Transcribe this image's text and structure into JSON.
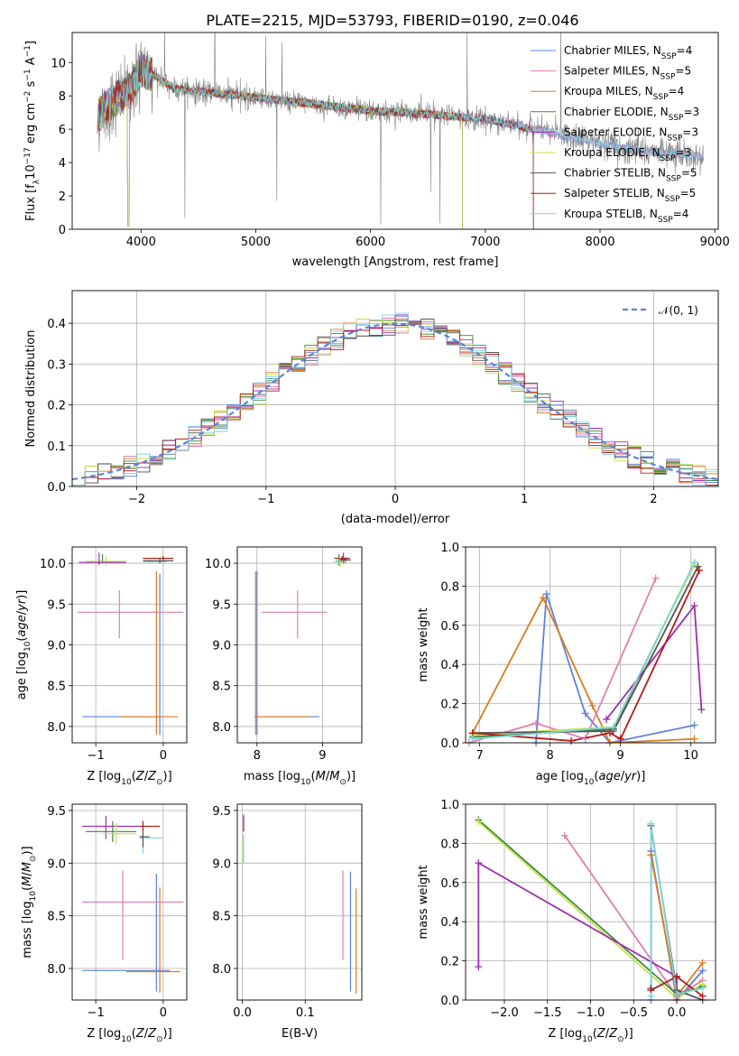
{
  "figure_title": "PLATE=2215, MJD=53793, FIBERID=0190, z=0.046",
  "colors": {
    "Chabrier MILES": "#5b84d6",
    "Salpeter MILES": "#e07fb0",
    "Kroupa MILES": "#d97b25",
    "Chabrier ELODIE": "#3c8a3c",
    "Salpeter ELODIE": "#9b2fae",
    "Kroupa ELODIE": "#c9e04a",
    "Chabrier STELIB": "#555555",
    "Salpeter STELIB": "#b31b1b",
    "Kroupa STELIB": "#7fd6dc",
    "data": "#808080"
  },
  "chart_data": [
    {
      "id": "spectrum",
      "type": "line",
      "title": "PLATE=2215, MJD=53793, FIBERID=0190, z=0.046",
      "xlabel": "wavelength [Angstrom, rest frame]",
      "ylabel_parts": [
        "Flux [f",
        "λ",
        "10",
        "−17",
        " erg cm",
        "−2",
        " s",
        "−1",
        " A",
        "−1",
        "]"
      ],
      "xlim": [
        3400,
        9030
      ],
      "ylim": [
        0,
        11.8
      ],
      "xticks": [
        4000,
        5000,
        6000,
        7000,
        8000,
        9000
      ],
      "yticks": [
        0,
        2,
        4,
        6,
        8,
        10
      ],
      "legend_position": "top-right",
      "legend": [
        {
          "base": "Chabrier MILES, N",
          "sub": "SSP",
          "tail": "=4"
        },
        {
          "base": "Salpeter MILES, N",
          "sub": "SSP",
          "tail": "=5"
        },
        {
          "base": "Kroupa MILES, N",
          "sub": "SSP",
          "tail": "=4"
        },
        {
          "base": "Chabrier ELODIE, N",
          "sub": "SSP",
          "tail": "=3"
        },
        {
          "base": "Salpeter ELODIE, N",
          "sub": "SSP",
          "tail": "=3"
        },
        {
          "base": "Kroupa ELODIE, N",
          "sub": "SSP",
          "tail": "=3"
        },
        {
          "base": "Chabrier STELIB, N",
          "sub": "SSP",
          "tail": "=5"
        },
        {
          "base": "Salpeter STELIB, N",
          "sub": "SSP",
          "tail": "=5"
        },
        {
          "base": "Kroupa STELIB, N",
          "sub": "SSP",
          "tail": "=4"
        }
      ],
      "continuum": {
        "x": [
          3620,
          3700,
          3800,
          3900,
          4000,
          4100,
          4300,
          4600,
          5000,
          5500,
          6000,
          6500,
          7000,
          7500,
          8000,
          8500,
          8900
        ],
        "y": [
          6.8,
          7.3,
          7.9,
          8.3,
          9.6,
          9.3,
          8.4,
          8.2,
          7.9,
          7.5,
          7.1,
          6.9,
          6.6,
          5.9,
          5.1,
          4.6,
          4.4
        ]
      }
    },
    {
      "id": "residuals",
      "type": "line",
      "xlabel": "(data-model)/error",
      "ylabel": "Normed distribution",
      "xlim": [
        -2.5,
        2.5
      ],
      "ylim": [
        0,
        0.48
      ],
      "xticks": [
        -2,
        -1,
        0,
        1,
        2
      ],
      "yticks": [
        0.0,
        0.1,
        0.2,
        0.3,
        0.4
      ],
      "grid": true,
      "legend_position": "top-right",
      "reference": {
        "name": "𝒩(0, 1)",
        "mean": 0,
        "std": 1
      },
      "histogram_bin_width": 0.1
    },
    {
      "id": "age-vs-Z",
      "type": "scatter",
      "xlabel": "Z [log10(Z/Z⊙)]",
      "ylabel": "age  [log10(age/yr)]",
      "xlim": [
        -1.35,
        0.35
      ],
      "ylim": [
        7.8,
        10.2
      ],
      "xticks": [
        -1,
        0
      ],
      "yticks": [
        8.0,
        8.5,
        9.0,
        9.5,
        10.0
      ],
      "grid": true,
      "points": [
        {
          "model": "Chabrier MILES",
          "x": -0.05,
          "xerr": [
            1.15,
            0.05
          ],
          "y": 8.12,
          "yerr": [
            0.22,
            1.75
          ]
        },
        {
          "model": "Kroupa MILES",
          "x": -0.1,
          "xerr": [
            0.55,
            0.32
          ],
          "y": 8.12,
          "yerr": [
            0.22,
            1.78
          ]
        },
        {
          "model": "Salpeter MILES",
          "x": -0.65,
          "xerr": [
            0.62,
            0.95
          ],
          "y": 9.4,
          "yerr": [
            0.32,
            0.27
          ]
        },
        {
          "model": "Salpeter STELIB",
          "x": 0.0,
          "xerr": [
            0.3,
            0.15
          ],
          "y": 10.06,
          "yerr": [
            0.04,
            0.03
          ]
        },
        {
          "model": "Chabrier ELODIE",
          "x": -0.9,
          "xerr": [
            0.25,
            0.35
          ],
          "y": 10.02,
          "yerr": [
            0.02,
            0.09
          ]
        },
        {
          "model": "Kroupa ELODIE",
          "x": -0.85,
          "xerr": [
            0.3,
            0.3
          ],
          "y": 10.02,
          "yerr": [
            0.05,
            0.06
          ]
        },
        {
          "model": "Salpeter ELODIE",
          "x": -0.95,
          "xerr": [
            0.3,
            0.4
          ],
          "y": 10.01,
          "yerr": [
            0.03,
            0.12
          ]
        },
        {
          "model": "Kroupa STELIB",
          "x": -0.2,
          "xerr": [
            0.1,
            0.25
          ],
          "y": 10.02,
          "yerr": [
            0.03,
            0.04
          ]
        },
        {
          "model": "Chabrier STELIB",
          "x": -0.05,
          "xerr": [
            0.25,
            0.2
          ],
          "y": 10.03,
          "yerr": [
            0.03,
            0.04
          ]
        }
      ]
    },
    {
      "id": "age-vs-mass",
      "type": "scatter",
      "xlabel": "mass [log10(M/M⊙)]",
      "ylabel": "",
      "xlim": [
        7.7,
        9.6
      ],
      "ylim": [
        7.8,
        10.2
      ],
      "xticks": [
        8,
        9
      ],
      "yticks": [
        8.0,
        8.5,
        9.0,
        9.5,
        10.0
      ],
      "grid": true,
      "points": [
        {
          "model": "Chabrier MILES",
          "x": 8.0,
          "xerr": [
            0.02,
            0.95
          ],
          "y": 8.12,
          "yerr": [
            0.22,
            1.78
          ]
        },
        {
          "model": "Kroupa MILES",
          "x": 7.98,
          "xerr": [
            0.02,
            0.8
          ],
          "y": 8.12,
          "yerr": [
            0.22,
            1.78
          ]
        },
        {
          "model": "Salpeter MILES",
          "x": 8.62,
          "xerr": [
            0.55,
            0.45
          ],
          "y": 9.4,
          "yerr": [
            0.32,
            0.27
          ]
        },
        {
          "model": "Salpeter STELIB",
          "x": 9.3,
          "xerr": [
            0.12,
            0.12
          ],
          "y": 10.06,
          "yerr": [
            0.03,
            0.03
          ]
        },
        {
          "model": "Chabrier ELODIE",
          "x": 9.25,
          "xerr": [
            0.05,
            0.05
          ],
          "y": 10.02,
          "yerr": [
            0.05,
            0.09
          ]
        },
        {
          "model": "Kroupa ELODIE",
          "x": 9.27,
          "xerr": [
            0.05,
            0.05
          ],
          "y": 10.0,
          "yerr": [
            0.04,
            0.06
          ]
        },
        {
          "model": "Salpeter ELODIE",
          "x": 9.32,
          "xerr": [
            0.05,
            0.05
          ],
          "y": 10.05,
          "yerr": [
            0.05,
            0.08
          ]
        },
        {
          "model": "Kroupa STELIB",
          "x": 9.22,
          "xerr": [
            0.05,
            0.05
          ],
          "y": 10.02,
          "yerr": [
            0.03,
            0.03
          ]
        },
        {
          "model": "Chabrier STELIB",
          "x": 9.35,
          "xerr": [
            0.08,
            0.08
          ],
          "y": 10.04,
          "yerr": [
            0.03,
            0.03
          ]
        }
      ]
    },
    {
      "id": "mass-weight-vs-age",
      "type": "line",
      "xlabel": "age  [log10(age/yr)]",
      "ylabel": "mass weight",
      "xlim": [
        6.8,
        10.35
      ],
      "ylim": [
        0,
        1.0
      ],
      "xticks": [
        7,
        8,
        9,
        10
      ],
      "yticks": [
        0.0,
        0.2,
        0.4,
        0.6,
        0.8,
        1.0
      ],
      "grid": true,
      "series": [
        {
          "model": "Chabrier MILES",
          "x": [
            7.8,
            7.95,
            8.5,
            8.85,
            10.05
          ],
          "y": [
            0.0,
            0.76,
            0.15,
            0.0,
            0.09
          ]
        },
        {
          "model": "Kroupa MILES",
          "x": [
            6.9,
            7.9,
            8.6,
            8.85,
            10.05
          ],
          "y": [
            0.05,
            0.74,
            0.19,
            0.0,
            0.02
          ]
        },
        {
          "model": "Salpeter MILES",
          "x": [
            6.85,
            7.8,
            8.5,
            9.5
          ],
          "y": [
            0.0,
            0.1,
            0.02,
            0.84
          ]
        },
        {
          "model": "Chabrier ELODIE",
          "x": [
            6.9,
            8.9,
            10.05
          ],
          "y": [
            0.03,
            0.07,
            0.92
          ]
        },
        {
          "model": "Kroupa ELODIE",
          "x": [
            6.9,
            8.9,
            10.05
          ],
          "y": [
            0.04,
            0.08,
            0.91
          ]
        },
        {
          "model": "Salpeter ELODIE",
          "x": [
            8.8,
            10.05,
            10.15
          ],
          "y": [
            0.12,
            0.7,
            0.17
          ]
        },
        {
          "model": "Chabrier STELIB",
          "x": [
            6.9,
            8.9,
            10.1
          ],
          "y": [
            0.05,
            0.06,
            0.9
          ]
        },
        {
          "model": "Salpeter STELIB",
          "x": [
            6.9,
            8.3,
            8.85,
            9.0,
            10.12
          ],
          "y": [
            0.05,
            0.01,
            0.05,
            0.02,
            0.88
          ]
        },
        {
          "model": "Kroupa STELIB",
          "x": [
            6.9,
            8.9,
            10.05
          ],
          "y": [
            0.02,
            0.08,
            0.92
          ]
        }
      ]
    },
    {
      "id": "mass-vs-Z",
      "type": "scatter",
      "xlabel": "Z [log10(Z/Z⊙)]",
      "ylabel": "mass [log10(M/M⊙)]",
      "xlim": [
        -1.35,
        0.35
      ],
      "ylim": [
        7.7,
        9.56
      ],
      "xticks": [
        -1,
        0
      ],
      "yticks": [
        8.0,
        8.5,
        9.0,
        9.5
      ],
      "grid": true,
      "points": [
        {
          "model": "Chabrier MILES",
          "x": -0.1,
          "xerr": [
            1.1,
            0.2
          ],
          "y": 7.98,
          "yerr": [
            0.2,
            0.92
          ]
        },
        {
          "model": "Kroupa MILES",
          "x": -0.05,
          "xerr": [
            0.5,
            0.3
          ],
          "y": 7.97,
          "yerr": [
            0.2,
            0.8
          ]
        },
        {
          "model": "Salpeter MILES",
          "x": -0.6,
          "xerr": [
            0.6,
            0.9
          ],
          "y": 8.63,
          "yerr": [
            0.55,
            0.3
          ]
        },
        {
          "model": "Salpeter STELIB",
          "x": -0.3,
          "xerr": [
            0.05,
            0.25
          ],
          "y": 9.35,
          "yerr": [
            0.05,
            0.05
          ]
        },
        {
          "model": "Salpeter ELODIE",
          "x": -0.85,
          "xerr": [
            0.35,
            0.5
          ],
          "y": 9.35,
          "yerr": [
            0.12,
            0.1
          ]
        },
        {
          "model": "Chabrier ELODIE",
          "x": -0.75,
          "xerr": [
            0.4,
            0.35
          ],
          "y": 9.3,
          "yerr": [
            0.1,
            0.1
          ]
        },
        {
          "model": "Kroupa ELODIE",
          "x": -0.7,
          "xerr": [
            0.2,
            0.3
          ],
          "y": 9.28,
          "yerr": [
            0.1,
            0.1
          ]
        },
        {
          "model": "Kroupa STELIB",
          "x": -0.3,
          "xerr": [
            0.05,
            0.3
          ],
          "y": 9.24,
          "yerr": [
            0.15,
            0.05
          ]
        },
        {
          "model": "Chabrier STELIB",
          "x": -0.3,
          "xerr": [
            0.05,
            0.1
          ],
          "y": 9.25,
          "yerr": [
            0.1,
            0.05
          ]
        }
      ]
    },
    {
      "id": "mass-vs-EBV",
      "type": "scatter",
      "xlabel": "E(B-V)",
      "ylabel": "",
      "xlim": [
        -0.008,
        0.19
      ],
      "ylim": [
        7.7,
        9.56
      ],
      "xticks": [
        0.0,
        0.1
      ],
      "yticks": [
        8.0,
        8.5,
        9.0,
        9.5
      ],
      "grid": true,
      "points": [
        {
          "model": "Salpeter MILES",
          "x": 0.16,
          "y": 8.5,
          "yerr": [
            0.42,
            0.43
          ]
        },
        {
          "model": "Chabrier MILES",
          "x": 0.172,
          "y": 8.35,
          "yerr": [
            0.57,
            0.57
          ]
        },
        {
          "model": "Kroupa MILES",
          "x": 0.181,
          "y": 8.26,
          "yerr": [
            0.5,
            0.5
          ]
        },
        {
          "model": "Salpeter STELIB",
          "x": 0.002,
          "y": 9.35,
          "yerr": [
            0.05,
            0.1
          ]
        },
        {
          "model": "Salpeter ELODIE",
          "x": 0.002,
          "y": 9.38,
          "yerr": [
            0.05,
            0.08
          ]
        },
        {
          "model": "Kroupa STELIB",
          "x": 0.002,
          "y": 9.22,
          "yerr": [
            0.22,
            0.05
          ]
        },
        {
          "model": "Kroupa ELODIE",
          "x": 0.001,
          "y": 9.15,
          "yerr": [
            0.15,
            0.1
          ]
        }
      ]
    },
    {
      "id": "mass-weight-vs-Z",
      "type": "line",
      "xlabel": "Z [log10(Z/Z⊙)]",
      "ylabel": "mass weight",
      "xlim": [
        -2.45,
        0.45
      ],
      "ylim": [
        0,
        1.0
      ],
      "xticks": [
        -2.0,
        -1.5,
        -1.0,
        -0.5,
        0.0
      ],
      "yticks": [
        0.0,
        0.2,
        0.4,
        0.6,
        0.8,
        1.0
      ],
      "grid": true,
      "series": [
        {
          "model": "Chabrier MILES",
          "x": [
            -0.3,
            -0.3,
            0.0,
            0.3
          ],
          "y": [
            0.0,
            0.76,
            0.0,
            0.15
          ]
        },
        {
          "model": "Kroupa MILES",
          "x": [
            -0.3,
            -0.3,
            0.0,
            0.3
          ],
          "y": [
            0.05,
            0.74,
            0.02,
            0.19
          ]
        },
        {
          "model": "Salpeter MILES",
          "x": [
            -1.3,
            0.0,
            0.3
          ],
          "y": [
            0.84,
            0.02,
            0.1
          ]
        },
        {
          "model": "Chabrier ELODIE",
          "x": [
            -2.3,
            0.0,
            0.3
          ],
          "y": [
            0.92,
            0.03,
            0.07
          ]
        },
        {
          "model": "Kroupa ELODIE",
          "x": [
            -2.3,
            0.0,
            0.3
          ],
          "y": [
            0.91,
            0.01,
            0.08
          ]
        },
        {
          "model": "Salpeter ELODIE",
          "x": [
            -2.3,
            -2.3,
            0.0,
            0.0
          ],
          "y": [
            0.17,
            0.7,
            0.12,
            0.0
          ]
        },
        {
          "model": "Chabrier STELIB",
          "x": [
            -0.3,
            -0.3,
            0.0,
            0.3
          ],
          "y": [
            0.06,
            0.89,
            0.05,
            0.0
          ]
        },
        {
          "model": "Salpeter STELIB",
          "x": [
            -0.3,
            0.0,
            0.3
          ],
          "y": [
            0.05,
            0.12,
            0.02
          ]
        },
        {
          "model": "Kroupa STELIB",
          "x": [
            -0.3,
            -0.3,
            0.0,
            0.3
          ],
          "y": [
            0.02,
            0.9,
            0.03,
            0.06
          ]
        }
      ]
    }
  ]
}
